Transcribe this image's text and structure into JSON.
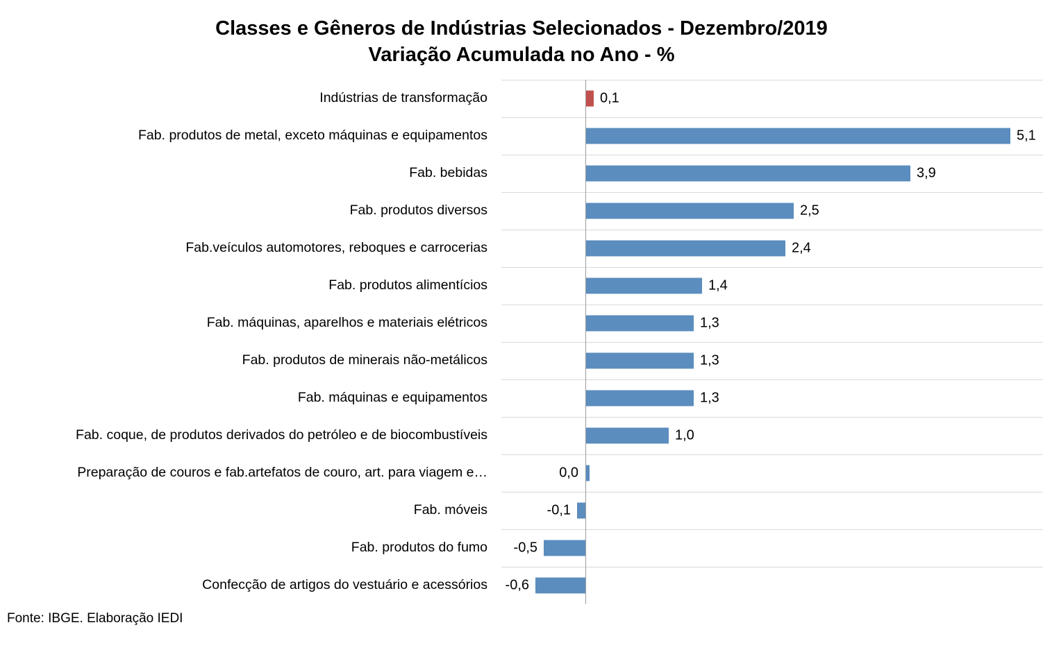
{
  "chart_data": {
    "type": "bar",
    "orientation": "horizontal",
    "title_line1": "Classes e Gêneros de Indústrias Selecionados - Dezembro/2019",
    "title_line2": "Variação Acumulada no Ano - %",
    "categories": [
      "Indústrias de transformação",
      "Fab. produtos de metal, exceto máquinas e equipamentos",
      "Fab. bebidas",
      "Fab. produtos diversos",
      "Fab.veículos automotores, reboques e carrocerias",
      "Fab. produtos alimentícios",
      "Fab. máquinas, aparelhos e materiais elétricos",
      "Fab. produtos de minerais não-metálicos",
      "Fab. máquinas e equipamentos",
      "Fab. coque, de produtos derivados do petróleo e de biocombustíveis",
      "Preparação de couros e fab.artefatos de couro, art. para viagem e…",
      "Fab. móveis",
      "Fab. produtos do fumo",
      "Confecção de artigos do vestuário e acessórios"
    ],
    "values": [
      0.1,
      5.1,
      3.9,
      2.5,
      2.4,
      1.4,
      1.3,
      1.3,
      1.3,
      1.0,
      0.0,
      -0.1,
      -0.5,
      -0.6
    ],
    "value_labels": [
      "0,1",
      "5,1",
      "3,9",
      "2,5",
      "2,4",
      "1,4",
      "1,3",
      "1,3",
      "1,3",
      "1,0",
      "0,0",
      "-0,1",
      "-0,5",
      "-0,6"
    ],
    "highlight_index": 0,
    "bar_colors": {
      "default": "#5b8dbe",
      "highlight": "#c0504d"
    },
    "gridline_color": "#d9d9d9",
    "axis_line_color": "#9b9b9b",
    "xlim": [
      -0.85,
      5.5
    ],
    "grid": "row-separators-only",
    "legend": "none"
  },
  "footer": {
    "source": "Fonte: IBGE. Elaboração IEDI"
  }
}
